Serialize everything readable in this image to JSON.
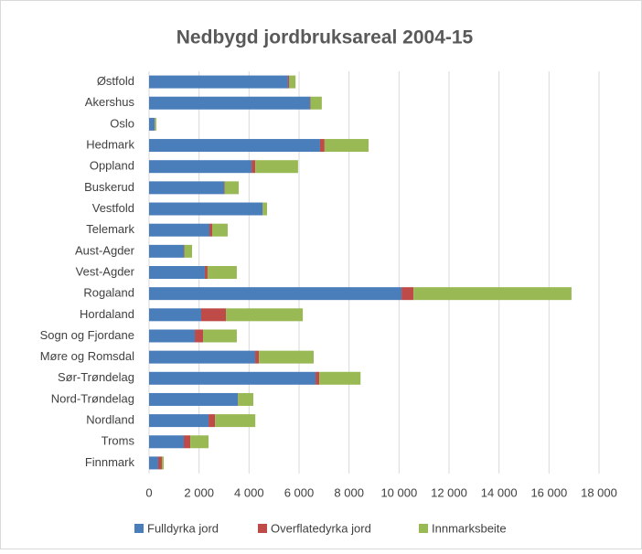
{
  "chart_data": {
    "type": "bar",
    "orientation": "horizontal",
    "stacked": true,
    "title": "Nedbygd jordbruksareal  2004-15",
    "categories": [
      "Østfold",
      "Akershus",
      "Oslo",
      "Hedmark",
      "Oppland",
      "Buskerud",
      "Vestfold",
      "Telemark",
      "Aust-Agder",
      "Vest-Agder",
      "Rogaland",
      "Hordaland",
      "Sogn og Fjordane",
      "Møre og Romsdal",
      "Sør-Trøndelag",
      "Nord-Trøndelag",
      "Nordland",
      "Troms",
      "Finnmark"
    ],
    "series": [
      {
        "name": "Fulldyrka jord",
        "color": "#4a7ebb",
        "values": [
          5560,
          6440,
          220,
          6840,
          4100,
          3000,
          4540,
          2415,
          1390,
          2230,
          10100,
          2085,
          1830,
          4245,
          6660,
          3550,
          2380,
          1390,
          365
        ]
      },
      {
        "name": "Overflatedyrka jord",
        "color": "#be4b48",
        "values": [
          50,
          20,
          10,
          180,
          150,
          20,
          10,
          110,
          20,
          110,
          480,
          990,
          330,
          150,
          150,
          10,
          260,
          260,
          150
        ]
      },
      {
        "name": "Innmarksbeite",
        "color": "#98b954",
        "values": [
          250,
          450,
          60,
          1760,
          1710,
          565,
          170,
          620,
          310,
          1170,
          6320,
          3075,
          1350,
          2190,
          1650,
          610,
          1610,
          730,
          70
        ]
      }
    ],
    "xlim": [
      0,
      18000
    ],
    "xticks": [
      0,
      {
        "value": 2000,
        "label": "2 000"
      },
      {
        "value": 4000,
        "label": "4 000"
      },
      {
        "value": 6000,
        "label": "6 000"
      },
      {
        "value": 8000,
        "label": "8 000"
      },
      {
        "value": 10000,
        "label": "10 000"
      },
      {
        "value": 12000,
        "label": "12 000"
      },
      {
        "value": 14000,
        "label": "14 000"
      },
      {
        "value": 16000,
        "label": "16 000"
      },
      {
        "value": 18000,
        "label": "18 000"
      }
    ],
    "grid": true,
    "legend": "bottom"
  }
}
